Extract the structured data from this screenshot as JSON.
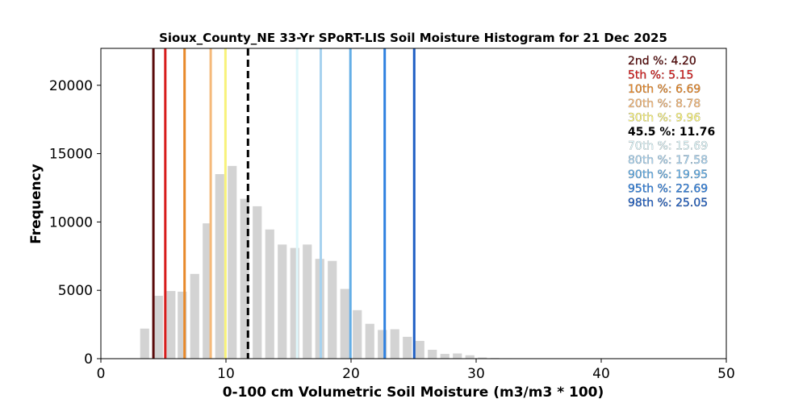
{
  "chart_data": {
    "type": "bar",
    "title": "Sioux_County_NE 33-Yr SPoRT-LIS Soil Moisture Histogram for 21 Dec 2025",
    "xlabel": "0-100 cm Volumetric Soil Moisture (m3/m3 * 100)",
    "ylabel": "Frequency",
    "xlim": [
      0,
      50
    ],
    "ylim": [
      0,
      22700
    ],
    "xticks": [
      0,
      10,
      20,
      30,
      40,
      50
    ],
    "yticks": [
      0,
      5000,
      10000,
      15000,
      20000
    ],
    "bin_width": 1.0,
    "bar_color": "#d3d3d3",
    "bins": [
      {
        "x": 2.4,
        "y": 30
      },
      {
        "x": 3.5,
        "y": 2200
      },
      {
        "x": 4.6,
        "y": 4600
      },
      {
        "x": 5.6,
        "y": 4950
      },
      {
        "x": 6.5,
        "y": 4900
      },
      {
        "x": 7.5,
        "y": 6200
      },
      {
        "x": 8.5,
        "y": 9900
      },
      {
        "x": 9.5,
        "y": 13500
      },
      {
        "x": 10.5,
        "y": 14100
      },
      {
        "x": 11.5,
        "y": 11700
      },
      {
        "x": 12.5,
        "y": 11150
      },
      {
        "x": 13.5,
        "y": 9450
      },
      {
        "x": 14.5,
        "y": 8350
      },
      {
        "x": 15.5,
        "y": 8100
      },
      {
        "x": 16.5,
        "y": 8350
      },
      {
        "x": 17.5,
        "y": 7300
      },
      {
        "x": 18.5,
        "y": 7150
      },
      {
        "x": 19.5,
        "y": 5100
      },
      {
        "x": 20.5,
        "y": 3550
      },
      {
        "x": 21.5,
        "y": 2550
      },
      {
        "x": 22.5,
        "y": 2100
      },
      {
        "x": 23.5,
        "y": 2150
      },
      {
        "x": 24.5,
        "y": 1600
      },
      {
        "x": 25.5,
        "y": 1300
      },
      {
        "x": 26.5,
        "y": 650
      },
      {
        "x": 27.5,
        "y": 350
      },
      {
        "x": 28.5,
        "y": 380
      },
      {
        "x": 29.5,
        "y": 250
      },
      {
        "x": 30.5,
        "y": 90
      },
      {
        "x": 31.5,
        "y": 50
      },
      {
        "x": 32.5,
        "y": 30
      }
    ],
    "percentiles": [
      {
        "label": "2nd %: 4.20",
        "value": 4.2,
        "color": "#5a0a0a",
        "dashed": false
      },
      {
        "label": "5th %: 5.15",
        "value": 5.15,
        "color": "#d71b1b",
        "dashed": false
      },
      {
        "label": "10th %: 6.69",
        "value": 6.69,
        "color": "#e8892a",
        "dashed": false
      },
      {
        "label": "20th %: 8.78",
        "value": 8.78,
        "color": "#f5b97a",
        "dashed": false
      },
      {
        "label": "30th %: 9.96",
        "value": 9.96,
        "color": "#f8f27a",
        "dashed": false
      },
      {
        "label": "45.5 %: 11.76",
        "value": 11.76,
        "color": "#000000",
        "dashed": true
      },
      {
        "label": "70th %: 15.69",
        "value": 15.69,
        "color": "#dff7fb",
        "dashed": false
      },
      {
        "label": "80th %: 17.58",
        "value": 17.58,
        "color": "#a7d2ef",
        "dashed": false
      },
      {
        "label": "90th %: 19.95",
        "value": 19.95,
        "color": "#63aee6",
        "dashed": false
      },
      {
        "label": "95th %: 22.69",
        "value": 22.69,
        "color": "#2f81e0",
        "dashed": false
      },
      {
        "label": "98th %: 25.05",
        "value": 25.05,
        "color": "#1f5fc4",
        "dashed": false
      }
    ],
    "legend_placement": "top-right",
    "grid": false
  }
}
